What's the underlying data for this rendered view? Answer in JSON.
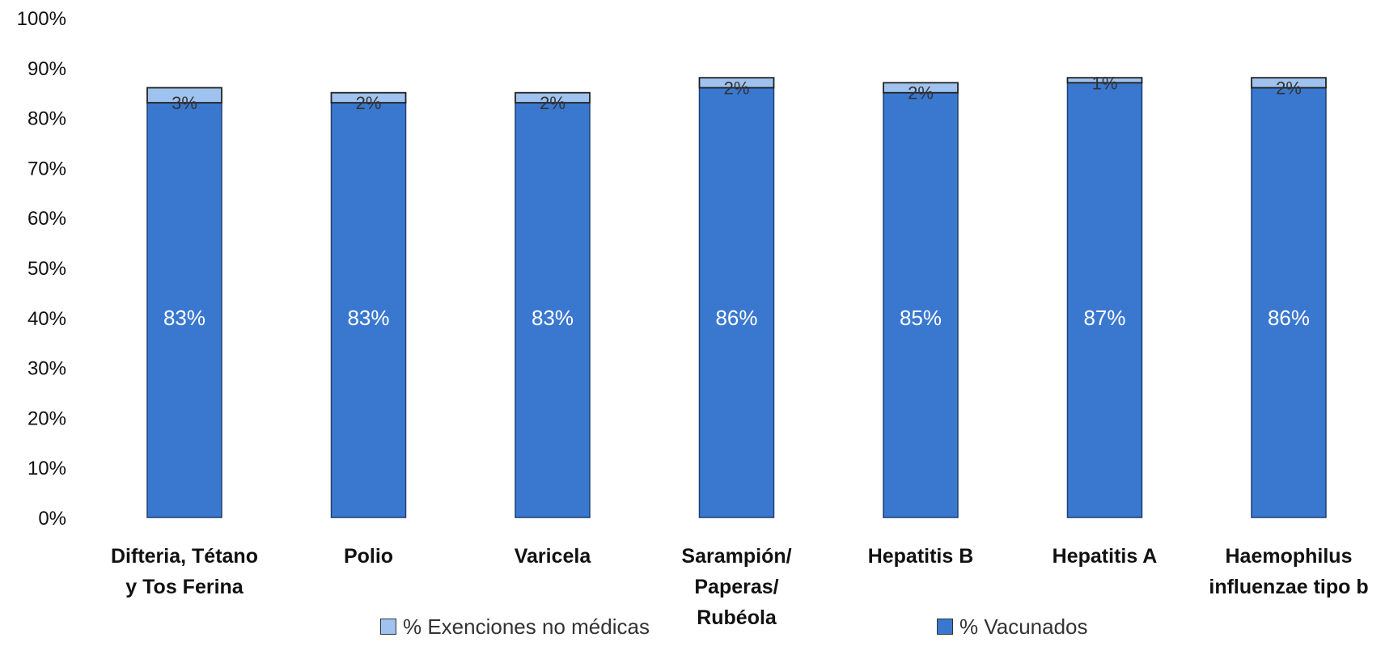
{
  "chart_data": {
    "type": "bar",
    "stacked": true,
    "categories": [
      [
        "Difteria, Tétano",
        "y Tos Ferina"
      ],
      [
        "Polio"
      ],
      [
        "Varicela"
      ],
      [
        "Sarampión/",
        "Paperas/",
        "Rubéola"
      ],
      [
        "Hepatitis B"
      ],
      [
        "Hepatitis A"
      ],
      [
        "Haemophilus",
        "influenzae tipo b"
      ]
    ],
    "series": [
      {
        "name": "% Vacunados",
        "values": [
          83,
          83,
          83,
          86,
          85,
          87,
          86
        ],
        "labels": [
          "83%",
          "83%",
          "83%",
          "86%",
          "85%",
          "87%",
          "86%"
        ],
        "color": "#3a78d0"
      },
      {
        "name": "% Exenciones no médicas",
        "values": [
          3,
          2,
          2,
          2,
          2,
          1,
          2
        ],
        "labels": [
          "3%",
          "2%",
          "2%",
          "2%",
          "2%",
          "1%",
          "2%"
        ],
        "color": "#9fc3ee"
      }
    ],
    "yticks": [
      "0%",
      "10%",
      "20%",
      "30%",
      "40%",
      "50%",
      "60%",
      "70%",
      "80%",
      "90%",
      "100%"
    ],
    "ylim": [
      0,
      100
    ],
    "grid": false,
    "legend_position": "bottom"
  }
}
